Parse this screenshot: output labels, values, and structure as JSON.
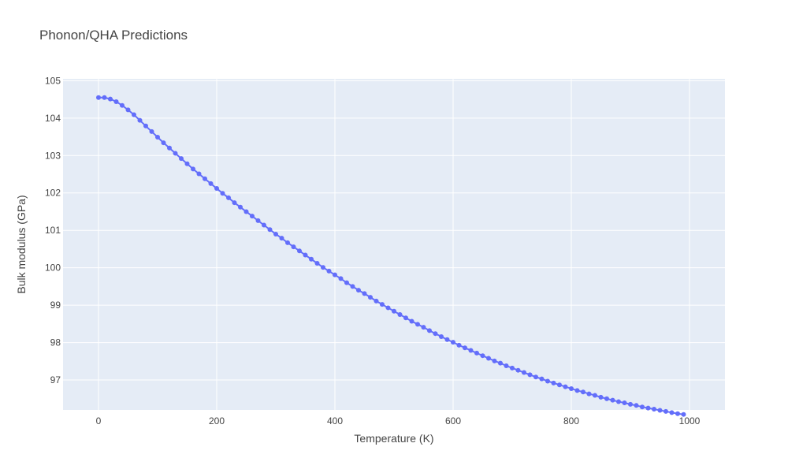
{
  "chart_data": {
    "type": "line",
    "title": "Phonon/QHA Predictions",
    "xlabel": "Temperature (K)",
    "ylabel": "Bulk modulus (GPa)",
    "xlim": [
      -60,
      1060
    ],
    "ylim": [
      96.2,
      105.05
    ],
    "xticks": [
      0,
      200,
      400,
      600,
      800,
      1000
    ],
    "yticks": [
      97,
      98,
      99,
      100,
      101,
      102,
      103,
      104,
      105
    ],
    "grid": true,
    "legend": "none",
    "colors": {
      "plot_bg": "#e5ecf6",
      "grid": "#ffffff",
      "series": "#636efa"
    },
    "series": [
      {
        "x": [
          0,
          10,
          20,
          30,
          40,
          50,
          60,
          70,
          80,
          90,
          100,
          110,
          120,
          130,
          140,
          150,
          160,
          170,
          180,
          190,
          200,
          210,
          220,
          230,
          240,
          250,
          260,
          270,
          280,
          290,
          300,
          310,
          320,
          330,
          340,
          350,
          360,
          370,
          380,
          390,
          400,
          410,
          420,
          430,
          440,
          450,
          460,
          470,
          480,
          490,
          500,
          510,
          520,
          530,
          540,
          550,
          560,
          570,
          580,
          590,
          600,
          610,
          620,
          630,
          640,
          650,
          660,
          670,
          680,
          690,
          700,
          710,
          720,
          730,
          740,
          750,
          760,
          770,
          780,
          790,
          800,
          810,
          820,
          830,
          840,
          850,
          860,
          870,
          880,
          890,
          900,
          910,
          920,
          930,
          940,
          950,
          960,
          970,
          980,
          990
        ],
        "y": [
          104.55,
          104.55,
          104.51,
          104.44,
          104.34,
          104.22,
          104.09,
          103.94,
          103.79,
          103.64,
          103.49,
          103.34,
          103.2,
          103.06,
          102.92,
          102.78,
          102.64,
          102.51,
          102.38,
          102.25,
          102.12,
          101.99,
          101.87,
          101.74,
          101.62,
          101.5,
          101.38,
          101.26,
          101.14,
          101.02,
          100.9,
          100.79,
          100.67,
          100.56,
          100.45,
          100.34,
          100.23,
          100.12,
          100.01,
          99.91,
          99.81,
          99.71,
          99.6,
          99.5,
          99.4,
          99.31,
          99.21,
          99.11,
          99.02,
          98.93,
          98.84,
          98.75,
          98.66,
          98.57,
          98.49,
          98.41,
          98.32,
          98.24,
          98.16,
          98.08,
          98.01,
          97.93,
          97.86,
          97.79,
          97.72,
          97.65,
          97.58,
          97.51,
          97.45,
          97.38,
          97.32,
          97.26,
          97.2,
          97.14,
          97.08,
          97.03,
          96.97,
          96.92,
          96.87,
          96.82,
          96.77,
          96.72,
          96.68,
          96.63,
          96.59,
          96.54,
          96.5,
          96.46,
          96.42,
          96.39,
          96.35,
          96.32,
          96.28,
          96.25,
          96.22,
          96.19,
          96.16,
          96.13,
          96.1,
          96.08
        ]
      }
    ]
  }
}
